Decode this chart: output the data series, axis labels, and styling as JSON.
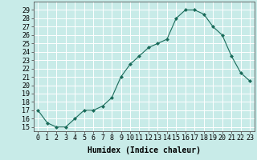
{
  "xlabel": "Humidex (Indice chaleur)",
  "ylabel": "",
  "x": [
    0,
    1,
    2,
    3,
    4,
    5,
    6,
    7,
    8,
    9,
    10,
    11,
    12,
    13,
    14,
    15,
    16,
    17,
    18,
    19,
    20,
    21,
    22,
    23
  ],
  "y": [
    17,
    15.5,
    15,
    15,
    16,
    17,
    17,
    17.5,
    18.5,
    21,
    22.5,
    23.5,
    24.5,
    25,
    25.5,
    28,
    29,
    29,
    28.5,
    27,
    26,
    23.5,
    21.5,
    20.5
  ],
  "line_color": "#1a6b5a",
  "marker": "D",
  "marker_size": 2,
  "bg_color": "#c8ebe8",
  "grid_color": "#ffffff",
  "axis_bg": "#c8ebe8",
  "ylim": [
    14.5,
    30
  ],
  "xlim": [
    -0.5,
    23.5
  ],
  "yticks": [
    15,
    16,
    17,
    18,
    19,
    20,
    21,
    22,
    23,
    24,
    25,
    26,
    27,
    28,
    29
  ],
  "xtick_labels": [
    "0",
    "1",
    "2",
    "3",
    "4",
    "5",
    "6",
    "7",
    "8",
    "9",
    "10",
    "11",
    "12",
    "13",
    "14",
    "15",
    "16",
    "17",
    "18",
    "19",
    "20",
    "21",
    "22",
    "23"
  ],
  "label_fontsize": 7,
  "tick_fontsize": 6
}
